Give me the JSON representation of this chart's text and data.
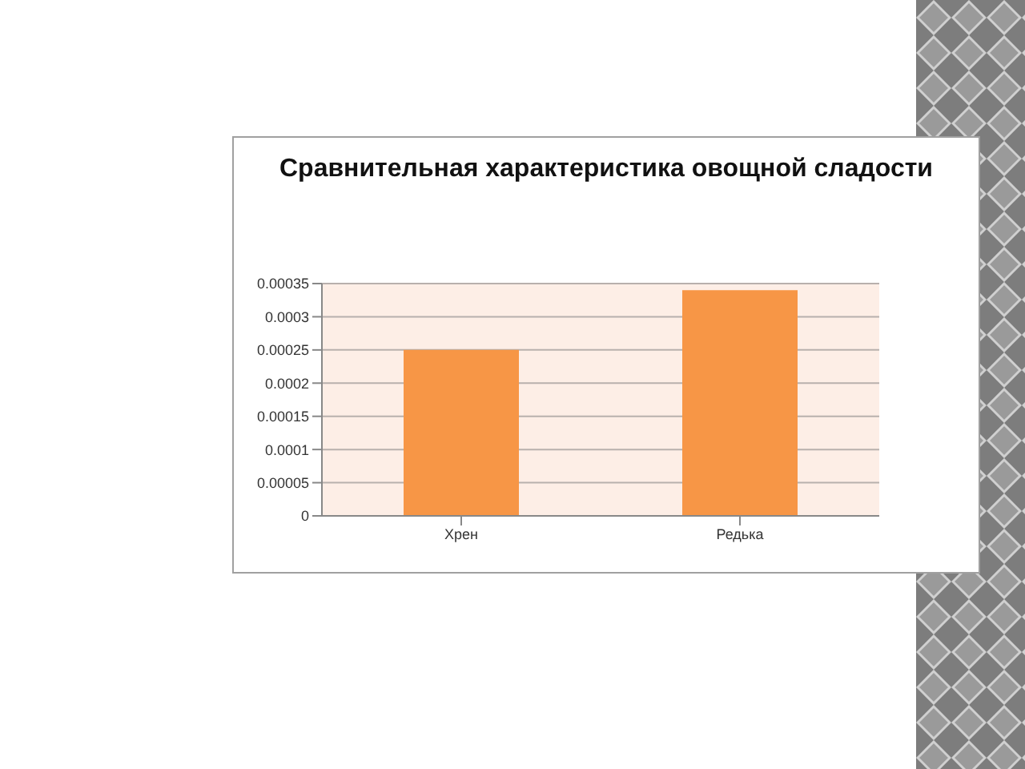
{
  "chart_data": {
    "type": "bar",
    "title": "Сравнительная характеристика овощной сладости",
    "categories": [
      "Хрен",
      "Редька"
    ],
    "values": [
      0.00025,
      0.00034
    ],
    "color": "#f79646",
    "ylim": [
      0,
      0.00035
    ],
    "yticks": [
      0,
      {
        "value": 5e-05,
        "label": "0.00005"
      },
      0.0001,
      0.00015,
      0.0002,
      0.00025,
      0.0003,
      0.00035
    ],
    "grid": "y"
  }
}
